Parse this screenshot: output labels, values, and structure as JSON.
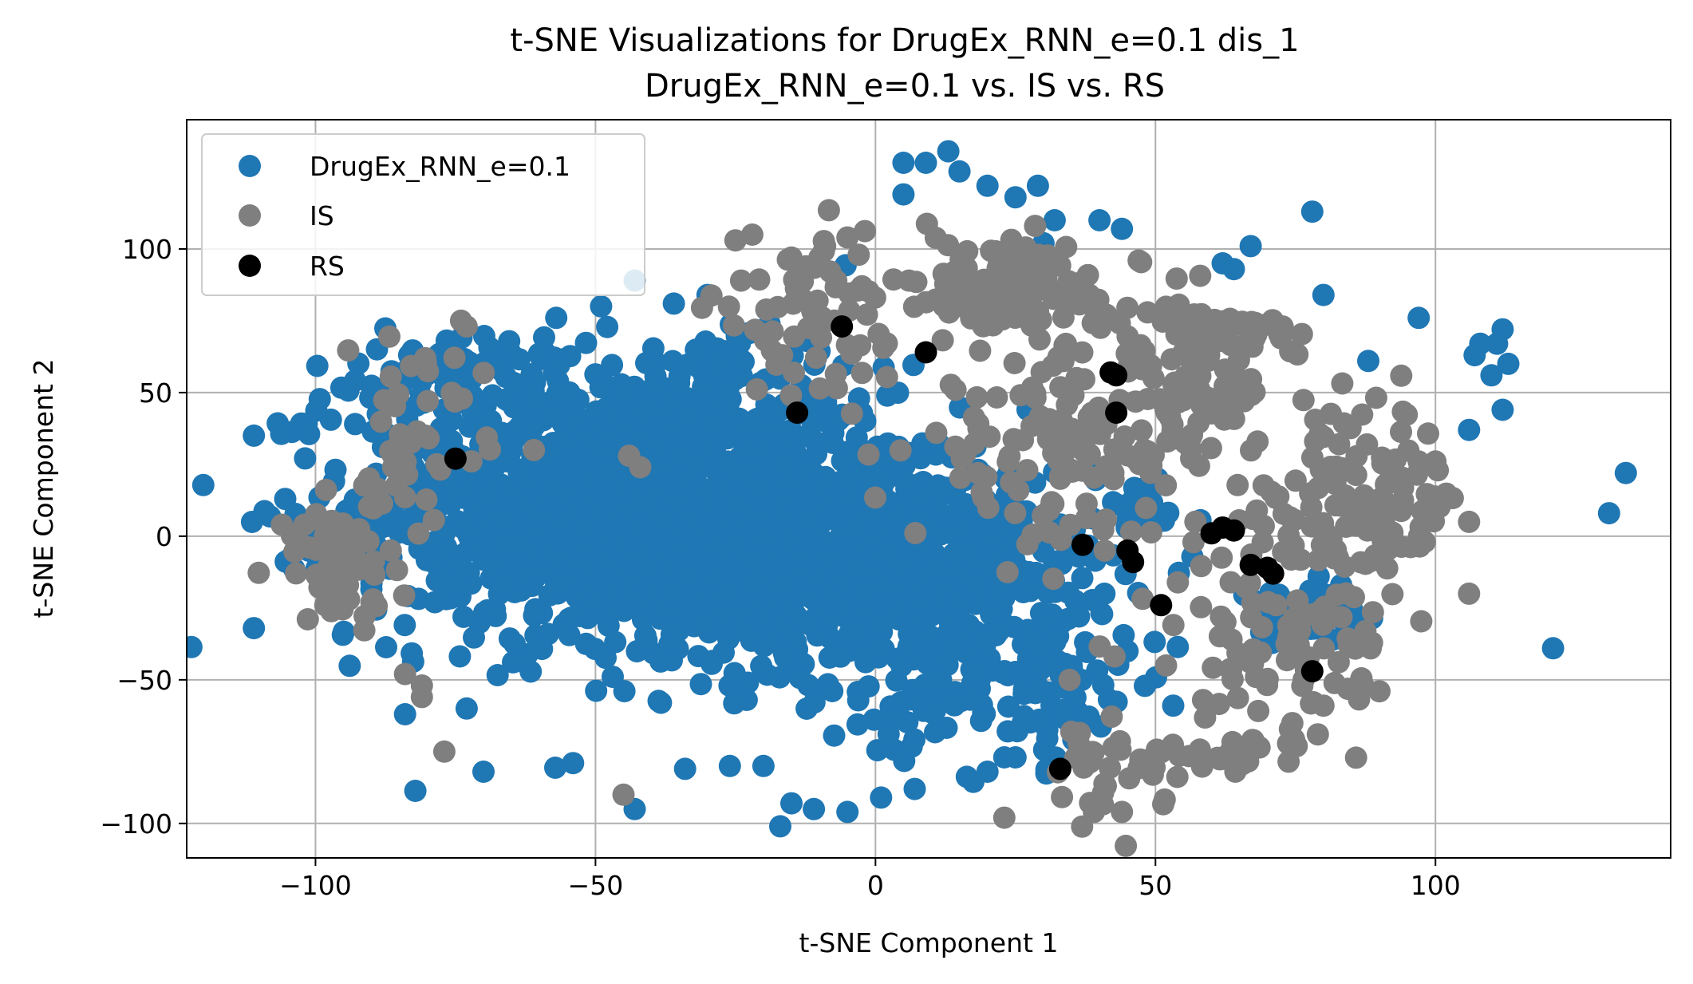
{
  "chart_data": {
    "type": "scatter",
    "title": "t-SNE Visualizations for DrugEx_RNN_e=0.1 dis_1",
    "subtitle": "DrugEx_RNN_e=0.1 vs. IS vs. RS",
    "xlabel": "t-SNE Component 1",
    "ylabel": "t-SNE Component 2",
    "xlim": [
      -123,
      142
    ],
    "ylim": [
      -112,
      145
    ],
    "xticks": [
      -100,
      -50,
      0,
      50,
      100
    ],
    "yticks": [
      -100,
      -50,
      0,
      50,
      100
    ],
    "xtick_labels": [
      "−100",
      "−50",
      "0",
      "50",
      "100"
    ],
    "ytick_labels": [
      "−100",
      "−50",
      "0",
      "50",
      "100"
    ],
    "grid": true,
    "legend_position": "top-left",
    "series": [
      {
        "name": "DrugEx_RNN_e=0.1",
        "color": "#1f77b4",
        "clusters": [
          {
            "cx": -45,
            "cy": 12,
            "sx": 24,
            "sy": 24,
            "n": 1300
          },
          {
            "cx": -15,
            "cy": -5,
            "sx": 20,
            "sy": 20,
            "n": 600
          },
          {
            "cx": 15,
            "cy": -20,
            "sx": 15,
            "sy": 22,
            "n": 350
          },
          {
            "cx": 25,
            "cy": -55,
            "sx": 12,
            "sy": 12,
            "n": 80
          },
          {
            "cx": 75,
            "cy": -28,
            "sx": 6,
            "sy": 5,
            "n": 60
          },
          {
            "cx": 48,
            "cy": 10,
            "sx": 4,
            "sy": 6,
            "n": 25
          },
          {
            "cx": -75,
            "cy": 58,
            "sx": 8,
            "sy": 6,
            "n": 60
          },
          {
            "cx": -30,
            "cy": 58,
            "sx": 8,
            "sy": 8,
            "n": 40
          }
        ],
        "points": [
          [
            5,
            130
          ],
          [
            9,
            130
          ],
          [
            13,
            134
          ],
          [
            15,
            127
          ],
          [
            20,
            122
          ],
          [
            25,
            118
          ],
          [
            29,
            122
          ],
          [
            32,
            110
          ],
          [
            40,
            110
          ],
          [
            44,
            107
          ],
          [
            5,
            119
          ],
          [
            30,
            102
          ],
          [
            -43,
            89
          ],
          [
            -30,
            84
          ],
          [
            -36,
            81
          ],
          [
            -49,
            80
          ],
          [
            -57,
            76
          ],
          [
            -111,
            35
          ],
          [
            -111,
            -32
          ],
          [
            78,
            113
          ],
          [
            80,
            84
          ],
          [
            97,
            76
          ],
          [
            88,
            61
          ],
          [
            107,
            63
          ],
          [
            108,
            67
          ],
          [
            112,
            72
          ],
          [
            111,
            67
          ],
          [
            113,
            60
          ],
          [
            110,
            56
          ],
          [
            112,
            44
          ],
          [
            106,
            37
          ],
          [
            134,
            22
          ],
          [
            131,
            8
          ],
          [
            121,
            -39
          ],
          [
            67,
            101
          ],
          [
            62,
            95
          ],
          [
            64,
            93
          ],
          [
            -70,
            -82
          ],
          [
            -54,
            -79
          ],
          [
            -17,
            -101
          ],
          [
            -15,
            -93
          ],
          [
            -43,
            -95
          ],
          [
            -11,
            -95
          ],
          [
            -5,
            -96
          ],
          [
            1,
            -91
          ],
          [
            7,
            -88
          ],
          [
            -84,
            -62
          ],
          [
            -73,
            -60
          ],
          [
            -34,
            -81
          ],
          [
            -26,
            -80
          ],
          [
            -20,
            -80
          ],
          [
            23,
            -77
          ],
          [
            20,
            -82
          ],
          [
            25,
            -77
          ],
          [
            45,
            -40
          ]
        ]
      },
      {
        "name": "IS",
        "color": "#7f7f7f",
        "clusters": [
          {
            "cx": -95,
            "cy": -8,
            "sx": 6,
            "sy": 12,
            "n": 60
          },
          {
            "cx": -82,
            "cy": 40,
            "sx": 6,
            "sy": 14,
            "n": 40
          },
          {
            "cx": 25,
            "cy": 85,
            "sx": 12,
            "sy": 9,
            "n": 120
          },
          {
            "cx": -10,
            "cy": 75,
            "sx": 10,
            "sy": 15,
            "n": 60
          },
          {
            "cx": 35,
            "cy": 30,
            "sx": 14,
            "sy": 16,
            "n": 140
          },
          {
            "cx": 55,
            "cy": 55,
            "sx": 8,
            "sy": 12,
            "n": 70
          },
          {
            "cx": 85,
            "cy": 10,
            "sx": 10,
            "sy": 18,
            "n": 130
          },
          {
            "cx": 70,
            "cy": -40,
            "sx": 12,
            "sy": 12,
            "n": 70
          },
          {
            "cx": 65,
            "cy": -75,
            "sx": 8,
            "sy": 4,
            "n": 30
          },
          {
            "cx": 40,
            "cy": -80,
            "sx": 6,
            "sy": 10,
            "n": 30
          },
          {
            "cx": 65,
            "cy": 70,
            "sx": 6,
            "sy": 4,
            "n": 30
          }
        ],
        "points": [
          [
            -22,
            105
          ],
          [
            -25,
            103
          ],
          [
            -5,
            104
          ],
          [
            -9,
            101
          ],
          [
            -3,
            98
          ],
          [
            -10,
            97
          ],
          [
            -15,
            97
          ],
          [
            -7,
            89
          ],
          [
            -24,
            89
          ],
          [
            -74,
            75
          ],
          [
            -73,
            73
          ],
          [
            -61,
            30
          ],
          [
            -44,
            28
          ],
          [
            -42,
            24
          ],
          [
            -77,
            -75
          ],
          [
            -45,
            -90
          ],
          [
            23,
            -98
          ],
          [
            44,
            -96
          ],
          [
            39,
            -96
          ],
          [
            79,
            -69
          ],
          [
            90,
            -54
          ],
          [
            97,
            26
          ],
          [
            100,
            26
          ],
          [
            106,
            5
          ],
          [
            106,
            -20
          ],
          [
            80,
            -59
          ],
          [
            33,
            20
          ],
          [
            47,
            96
          ],
          [
            -84,
            -48
          ],
          [
            -81,
            -52
          ],
          [
            -81,
            -56
          ],
          [
            -90,
            -23
          ],
          [
            -94,
            -22
          ],
          [
            -97,
            -23
          ],
          [
            -101,
            -4
          ],
          [
            -106,
            4
          ],
          [
            -102,
            4
          ]
        ]
      },
      {
        "name": "RS",
        "color": "#000000",
        "points": [
          [
            -75,
            27
          ],
          [
            -6,
            73
          ],
          [
            -14,
            43
          ],
          [
            9,
            64
          ],
          [
            42,
            57
          ],
          [
            43,
            56
          ],
          [
            43,
            43
          ],
          [
            37,
            -3
          ],
          [
            45,
            -5
          ],
          [
            46,
            -9
          ],
          [
            60,
            1
          ],
          [
            62,
            3
          ],
          [
            64,
            2
          ],
          [
            67,
            -10
          ],
          [
            70,
            -11
          ],
          [
            71,
            -13
          ],
          [
            51,
            -24
          ],
          [
            33,
            -81
          ],
          [
            78,
            -47
          ]
        ]
      }
    ]
  }
}
